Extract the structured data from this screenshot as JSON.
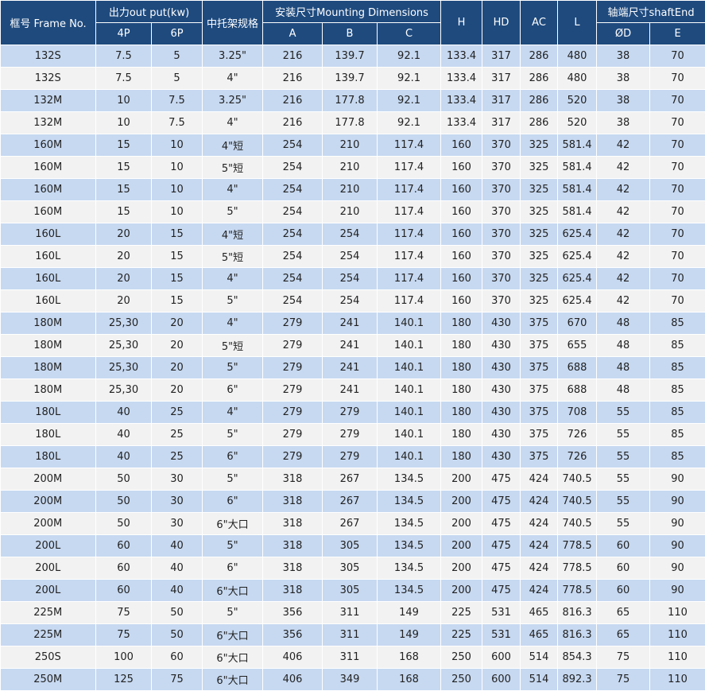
{
  "header": {
    "frame": "框号 Frame No.",
    "output": "出力out put(kw)",
    "p4": "4P",
    "p6": "6P",
    "bracket": "中托架规格",
    "mounting": "安装尺寸Mounting Dimensions",
    "a": "A",
    "b": "B",
    "c": "C",
    "h": "H",
    "hd": "HD",
    "ac": "AC",
    "l": "L",
    "shaft": "轴端尺寸shaftEnd",
    "od": "ØD",
    "e": "E"
  },
  "rows": [
    [
      "132S",
      "7.5",
      "5",
      "3.25\"",
      "216",
      "139.7",
      "92.1",
      "133.4",
      "317",
      "286",
      "480",
      "38",
      "70"
    ],
    [
      "132S",
      "7.5",
      "5",
      "4\"",
      "216",
      "139.7",
      "92.1",
      "133.4",
      "317",
      "286",
      "480",
      "38",
      "70"
    ],
    [
      "132M",
      "10",
      "7.5",
      "3.25\"",
      "216",
      "177.8",
      "92.1",
      "133.4",
      "317",
      "286",
      "520",
      "38",
      "70"
    ],
    [
      "132M",
      "10",
      "7.5",
      "4\"",
      "216",
      "177.8",
      "92.1",
      "133.4",
      "317",
      "286",
      "520",
      "38",
      "70"
    ],
    [
      "160M",
      "15",
      "10",
      "4\"短",
      "254",
      "210",
      "117.4",
      "160",
      "370",
      "325",
      "581.4",
      "42",
      "70"
    ],
    [
      "160M",
      "15",
      "10",
      "5\"短",
      "254",
      "210",
      "117.4",
      "160",
      "370",
      "325",
      "581.4",
      "42",
      "70"
    ],
    [
      "160M",
      "15",
      "10",
      "4\"",
      "254",
      "210",
      "117.4",
      "160",
      "370",
      "325",
      "581.4",
      "42",
      "70"
    ],
    [
      "160M",
      "15",
      "10",
      "5\"",
      "254",
      "210",
      "117.4",
      "160",
      "370",
      "325",
      "581.4",
      "42",
      "70"
    ],
    [
      "160L",
      "20",
      "15",
      "4\"短",
      "254",
      "254",
      "117.4",
      "160",
      "370",
      "325",
      "625.4",
      "42",
      "70"
    ],
    [
      "160L",
      "20",
      "15",
      "5\"短",
      "254",
      "254",
      "117.4",
      "160",
      "370",
      "325",
      "625.4",
      "42",
      "70"
    ],
    [
      "160L",
      "20",
      "15",
      "4\"",
      "254",
      "254",
      "117.4",
      "160",
      "370",
      "325",
      "625.4",
      "42",
      "70"
    ],
    [
      "160L",
      "20",
      "15",
      "5\"",
      "254",
      "254",
      "117.4",
      "160",
      "370",
      "325",
      "625.4",
      "42",
      "70"
    ],
    [
      "180M",
      "25,30",
      "20",
      "4\"",
      "279",
      "241",
      "140.1",
      "180",
      "430",
      "375",
      "670",
      "48",
      "85"
    ],
    [
      "180M",
      "25,30",
      "20",
      "5\"短",
      "279",
      "241",
      "140.1",
      "180",
      "430",
      "375",
      "655",
      "48",
      "85"
    ],
    [
      "180M",
      "25,30",
      "20",
      "5\"",
      "279",
      "241",
      "140.1",
      "180",
      "430",
      "375",
      "688",
      "48",
      "85"
    ],
    [
      "180M",
      "25,30",
      "20",
      "6\"",
      "279",
      "241",
      "140.1",
      "180",
      "430",
      "375",
      "688",
      "48",
      "85"
    ],
    [
      "180L",
      "40",
      "25",
      "4\"",
      "279",
      "279",
      "140.1",
      "180",
      "430",
      "375",
      "708",
      "55",
      "85"
    ],
    [
      "180L",
      "40",
      "25",
      "5\"",
      "279",
      "279",
      "140.1",
      "180",
      "430",
      "375",
      "726",
      "55",
      "85"
    ],
    [
      "180L",
      "40",
      "25",
      "6\"",
      "279",
      "279",
      "140.1",
      "180",
      "430",
      "375",
      "726",
      "55",
      "85"
    ],
    [
      "200M",
      "50",
      "30",
      "5\"",
      "318",
      "267",
      "134.5",
      "200",
      "475",
      "424",
      "740.5",
      "55",
      "90"
    ],
    [
      "200M",
      "50",
      "30",
      "6\"",
      "318",
      "267",
      "134.5",
      "200",
      "475",
      "424",
      "740.5",
      "55",
      "90"
    ],
    [
      "200M",
      "50",
      "30",
      "6\"大口",
      "318",
      "267",
      "134.5",
      "200",
      "475",
      "424",
      "740.5",
      "55",
      "90"
    ],
    [
      "200L",
      "60",
      "40",
      "5\"",
      "318",
      "305",
      "134.5",
      "200",
      "475",
      "424",
      "778.5",
      "60",
      "90"
    ],
    [
      "200L",
      "60",
      "40",
      "6\"",
      "318",
      "305",
      "134.5",
      "200",
      "475",
      "424",
      "778.5",
      "60",
      "90"
    ],
    [
      "200L",
      "60",
      "40",
      "6\"大口",
      "318",
      "305",
      "134.5",
      "200",
      "475",
      "424",
      "778.5",
      "60",
      "90"
    ],
    [
      "225M",
      "75",
      "50",
      "5\"",
      "356",
      "311",
      "149",
      "225",
      "531",
      "465",
      "816.3",
      "65",
      "110"
    ],
    [
      "225M",
      "75",
      "50",
      "6\"大口",
      "356",
      "311",
      "149",
      "225",
      "531",
      "465",
      "816.3",
      "65",
      "110"
    ],
    [
      "250S",
      "100",
      "60",
      "6\"大口",
      "406",
      "311",
      "168",
      "250",
      "600",
      "514",
      "854.3",
      "75",
      "110"
    ],
    [
      "250M",
      "125",
      "75",
      "6\"大口",
      "406",
      "349",
      "168",
      "250",
      "600",
      "514",
      "892.3",
      "75",
      "110"
    ]
  ]
}
